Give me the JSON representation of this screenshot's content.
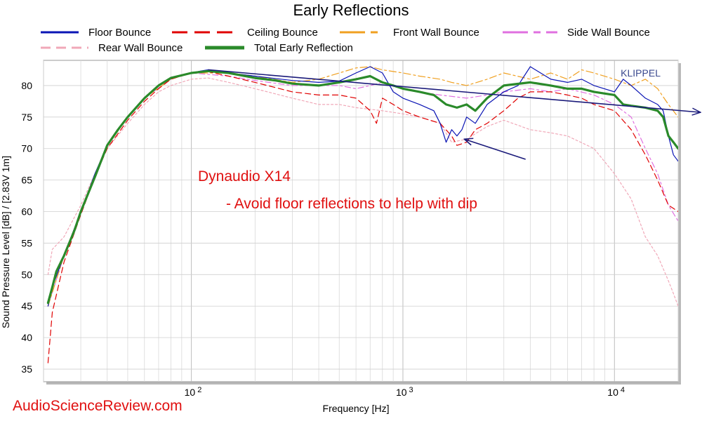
{
  "chart_data": {
    "type": "line",
    "title": "Early Reflections",
    "xlabel": "Frequency [Hz]",
    "ylabel": "Sound Pressure Level [dB]  / [2.83V 1m]",
    "x_scale": "log",
    "xlim": [
      20,
      20000
    ],
    "ylim": [
      33,
      84
    ],
    "grid": true,
    "legend_position": "top",
    "x_ticks": [
      {
        "value": 100,
        "base": "10",
        "exp": "2"
      },
      {
        "value": 1000,
        "base": "10",
        "exp": "3"
      },
      {
        "value": 10000,
        "base": "10",
        "exp": "4"
      }
    ],
    "y_ticks": [
      35,
      40,
      45,
      50,
      55,
      60,
      65,
      70,
      75,
      80
    ],
    "series": [
      {
        "name": "Floor Bounce",
        "color": "#0a14b4",
        "dash": "",
        "width": 1.2,
        "points": [
          [
            21,
            45
          ],
          [
            22,
            48
          ],
          [
            25,
            53
          ],
          [
            30,
            60
          ],
          [
            35,
            66
          ],
          [
            40,
            70.5
          ],
          [
            50,
            75
          ],
          [
            60,
            78
          ],
          [
            70,
            80
          ],
          [
            80,
            81.2
          ],
          [
            100,
            82
          ],
          [
            110,
            82.3
          ],
          [
            120,
            82.5
          ],
          [
            150,
            82
          ],
          [
            200,
            81.5
          ],
          [
            300,
            80.8
          ],
          [
            400,
            80.5
          ],
          [
            500,
            80.7
          ],
          [
            600,
            82
          ],
          [
            700,
            83
          ],
          [
            800,
            82
          ],
          [
            900,
            79
          ],
          [
            1000,
            78
          ],
          [
            1200,
            77
          ],
          [
            1400,
            76
          ],
          [
            1500,
            74
          ],
          [
            1600,
            71
          ],
          [
            1700,
            73
          ],
          [
            1800,
            72
          ],
          [
            1900,
            73
          ],
          [
            2000,
            75
          ],
          [
            2200,
            74
          ],
          [
            2500,
            77
          ],
          [
            3000,
            79
          ],
          [
            3500,
            80
          ],
          [
            4000,
            83
          ],
          [
            5000,
            81
          ],
          [
            6000,
            80.5
          ],
          [
            7000,
            81
          ],
          [
            8000,
            80
          ],
          [
            10000,
            79
          ],
          [
            11000,
            81
          ],
          [
            12000,
            80
          ],
          [
            14000,
            78
          ],
          [
            16000,
            77
          ],
          [
            17000,
            76
          ],
          [
            18000,
            72
          ],
          [
            19000,
            69
          ],
          [
            20000,
            68
          ]
        ]
      },
      {
        "name": "Ceiling Bounce",
        "color": "#e00000",
        "dash": "8 5",
        "width": 1.2,
        "points": [
          [
            21,
            36
          ],
          [
            22,
            44
          ],
          [
            25,
            52
          ],
          [
            30,
            59.5
          ],
          [
            35,
            65.5
          ],
          [
            40,
            70
          ],
          [
            50,
            74.5
          ],
          [
            60,
            77.5
          ],
          [
            70,
            79.5
          ],
          [
            80,
            81
          ],
          [
            100,
            82
          ],
          [
            120,
            82.2
          ],
          [
            150,
            81.5
          ],
          [
            200,
            80.5
          ],
          [
            300,
            79
          ],
          [
            400,
            78.5
          ],
          [
            500,
            78.5
          ],
          [
            600,
            78
          ],
          [
            700,
            76
          ],
          [
            750,
            74
          ],
          [
            800,
            78
          ],
          [
            900,
            77
          ],
          [
            1000,
            76
          ],
          [
            1200,
            75
          ],
          [
            1500,
            74
          ],
          [
            1700,
            72
          ],
          [
            1800,
            70.5
          ],
          [
            2000,
            71
          ],
          [
            2200,
            73
          ],
          [
            2500,
            74
          ],
          [
            3000,
            76
          ],
          [
            3500,
            78
          ],
          [
            4000,
            79
          ],
          [
            5000,
            79
          ],
          [
            6000,
            78.5
          ],
          [
            7000,
            78
          ],
          [
            8000,
            77
          ],
          [
            10000,
            76
          ],
          [
            12000,
            73
          ],
          [
            14000,
            69
          ],
          [
            16000,
            65
          ],
          [
            18000,
            61
          ],
          [
            19000,
            60.5
          ],
          [
            20000,
            60
          ]
        ]
      },
      {
        "name": "Front Wall Bounce",
        "color": "#f0a020",
        "dash": "10 4 3 4",
        "width": 1.2,
        "points": [
          [
            21,
            45
          ],
          [
            25,
            53
          ],
          [
            30,
            60
          ],
          [
            40,
            70.5
          ],
          [
            50,
            75
          ],
          [
            60,
            78
          ],
          [
            80,
            81
          ],
          [
            100,
            82
          ],
          [
            150,
            82
          ],
          [
            200,
            81.5
          ],
          [
            300,
            80.5
          ],
          [
            400,
            81
          ],
          [
            500,
            82
          ],
          [
            600,
            82.8
          ],
          [
            700,
            83
          ],
          [
            800,
            82.5
          ],
          [
            1000,
            82
          ],
          [
            1200,
            81.5
          ],
          [
            1500,
            81
          ],
          [
            1700,
            80.5
          ],
          [
            2000,
            80
          ],
          [
            2500,
            81
          ],
          [
            3000,
            82
          ],
          [
            4000,
            81
          ],
          [
            5000,
            82
          ],
          [
            6000,
            81
          ],
          [
            7000,
            82.5
          ],
          [
            8000,
            82
          ],
          [
            10000,
            81
          ],
          [
            12000,
            80
          ],
          [
            14000,
            81
          ],
          [
            16000,
            79.5
          ],
          [
            18000,
            77
          ],
          [
            20000,
            75
          ]
        ]
      },
      {
        "name": "Side Wall Bounce",
        "color": "#e070e0",
        "dash": "8 4 3 4",
        "width": 1.2,
        "points": [
          [
            21,
            45
          ],
          [
            25,
            53
          ],
          [
            30,
            60
          ],
          [
            40,
            70.5
          ],
          [
            50,
            75
          ],
          [
            60,
            78
          ],
          [
            80,
            81
          ],
          [
            100,
            82
          ],
          [
            150,
            81.5
          ],
          [
            200,
            80.8
          ],
          [
            300,
            80
          ],
          [
            400,
            80
          ],
          [
            500,
            80
          ],
          [
            600,
            79.5
          ],
          [
            700,
            80
          ],
          [
            800,
            80.5
          ],
          [
            1000,
            79.5
          ],
          [
            1200,
            79
          ],
          [
            1500,
            78.5
          ],
          [
            2000,
            78
          ],
          [
            2500,
            78.5
          ],
          [
            3000,
            79
          ],
          [
            4000,
            79.5
          ],
          [
            5000,
            79
          ],
          [
            6000,
            79.5
          ],
          [
            8000,
            78.5
          ],
          [
            10000,
            77
          ],
          [
            12000,
            75
          ],
          [
            14000,
            70
          ],
          [
            16000,
            66
          ],
          [
            18000,
            61
          ],
          [
            20000,
            58.5
          ]
        ]
      },
      {
        "name": "Rear Wall Bounce",
        "color": "#f0a8b8",
        "dash": "3 3",
        "width": 1.2,
        "points": [
          [
            21,
            50
          ],
          [
            22,
            54
          ],
          [
            25,
            56
          ],
          [
            30,
            61
          ],
          [
            35,
            66
          ],
          [
            40,
            70
          ],
          [
            50,
            74
          ],
          [
            60,
            77
          ],
          [
            70,
            79
          ],
          [
            80,
            80
          ],
          [
            100,
            81
          ],
          [
            120,
            81.2
          ],
          [
            150,
            80.5
          ],
          [
            200,
            79.5
          ],
          [
            300,
            78
          ],
          [
            400,
            77
          ],
          [
            500,
            77
          ],
          [
            600,
            76.5
          ],
          [
            800,
            76
          ],
          [
            1000,
            75.5
          ],
          [
            1200,
            75
          ],
          [
            1500,
            74
          ],
          [
            1700,
            71
          ],
          [
            2000,
            71.5
          ],
          [
            2500,
            73.5
          ],
          [
            3000,
            74.5
          ],
          [
            4000,
            73
          ],
          [
            5000,
            72.5
          ],
          [
            6000,
            72
          ],
          [
            8000,
            70
          ],
          [
            10000,
            66
          ],
          [
            12000,
            62
          ],
          [
            14000,
            56
          ],
          [
            16000,
            53
          ],
          [
            18000,
            49
          ],
          [
            19000,
            47
          ],
          [
            20000,
            45
          ]
        ]
      },
      {
        "name": "Total Early Reflection",
        "color": "#2a8a2a",
        "dash": "",
        "width": 3.2,
        "points": [
          [
            21,
            45.5
          ],
          [
            22,
            48
          ],
          [
            23,
            50.5
          ],
          [
            25,
            53
          ],
          [
            28,
            57
          ],
          [
            30,
            60
          ],
          [
            35,
            65.5
          ],
          [
            40,
            70.5
          ],
          [
            45,
            73
          ],
          [
            50,
            75
          ],
          [
            60,
            78
          ],
          [
            70,
            80
          ],
          [
            80,
            81.2
          ],
          [
            100,
            82
          ],
          [
            120,
            82.3
          ],
          [
            150,
            82
          ],
          [
            200,
            81.2
          ],
          [
            250,
            80.8
          ],
          [
            300,
            80.3
          ],
          [
            400,
            80
          ],
          [
            500,
            80.5
          ],
          [
            600,
            81
          ],
          [
            700,
            81.5
          ],
          [
            800,
            80.5
          ],
          [
            900,
            80
          ],
          [
            1000,
            79.5
          ],
          [
            1200,
            79
          ],
          [
            1400,
            78.5
          ],
          [
            1600,
            77
          ],
          [
            1800,
            76.5
          ],
          [
            2000,
            77
          ],
          [
            2200,
            76
          ],
          [
            2500,
            78
          ],
          [
            3000,
            80
          ],
          [
            4000,
            80.5
          ],
          [
            5000,
            80
          ],
          [
            6000,
            79.5
          ],
          [
            7000,
            79.5
          ],
          [
            8000,
            79
          ],
          [
            10000,
            78.5
          ],
          [
            11000,
            77
          ],
          [
            12000,
            76.8
          ],
          [
            14000,
            76.5
          ],
          [
            16000,
            76
          ],
          [
            17000,
            75
          ],
          [
            18000,
            72
          ],
          [
            19000,
            71
          ],
          [
            20000,
            70
          ]
        ]
      }
    ],
    "annotations": {
      "brand": "KLIPPEL",
      "title": "Dynaudio X14",
      "subtitle": "- Avoid floor reflections to help with dip",
      "watermark": "AudioScienceReview.com",
      "trend_line": {
        "from": [
          120,
          82.5
        ],
        "to": [
          20000,
          75.8
        ]
      },
      "dip_arrow": {
        "from": [
          3800,
          68.3
        ],
        "to": [
          1950,
          71.5
        ]
      }
    }
  }
}
